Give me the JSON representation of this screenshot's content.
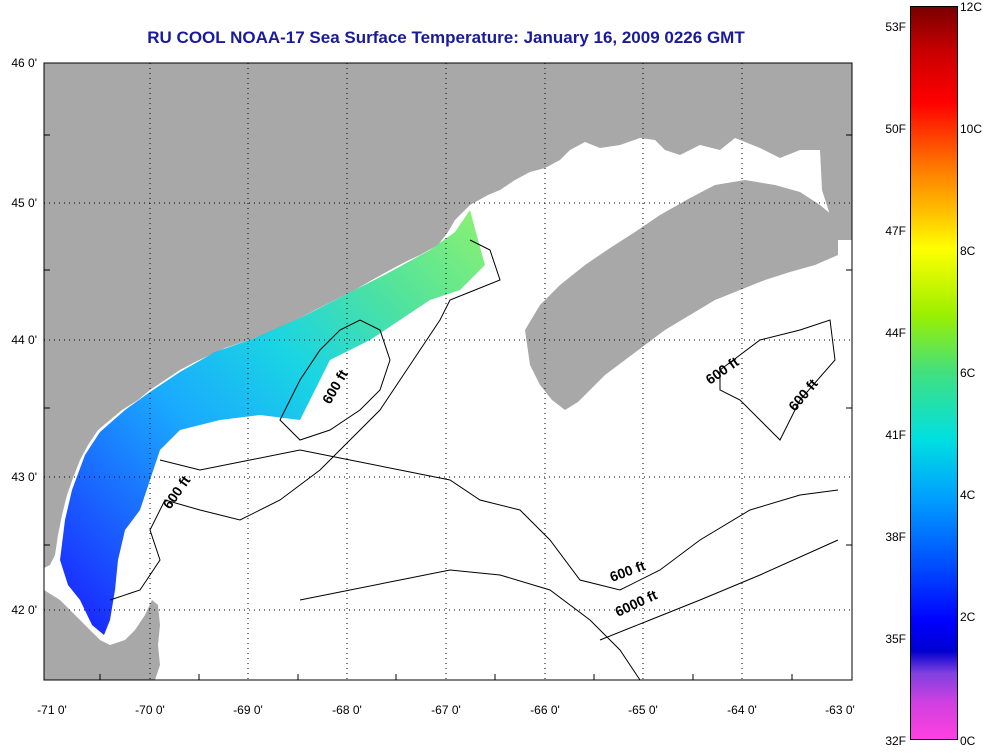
{
  "title": "RU COOL  NOAA-17  Sea Surface Temperature:  January 16, 2009 0226 GMT",
  "lat_ticks": [
    "46 0'",
    "45 0'",
    "44 0'",
    "43 0'",
    "42 0'"
  ],
  "lon_ticks": [
    "-71 0'",
    "-70 0'",
    "-69 0'",
    "-68 0'",
    "-67 0'",
    "-66 0'",
    "-65 0'",
    "-64 0'",
    "-63 0'"
  ],
  "contour_labels": [
    "600 ft",
    "600 ft",
    "600 ft",
    "600 ft",
    "600 ft",
    "6000 ft"
  ],
  "colorbar": {
    "f_labels": [
      "53F",
      "50F",
      "47F",
      "44F",
      "41F",
      "38F",
      "35F",
      "32F"
    ],
    "c_labels": [
      "12C",
      "10C",
      "8C",
      "6C",
      "4C",
      "2C",
      "0C"
    ]
  },
  "colors": {
    "land": "#a8a8a8",
    "title": "#1a1a9c",
    "ocean": "#ffffff"
  }
}
